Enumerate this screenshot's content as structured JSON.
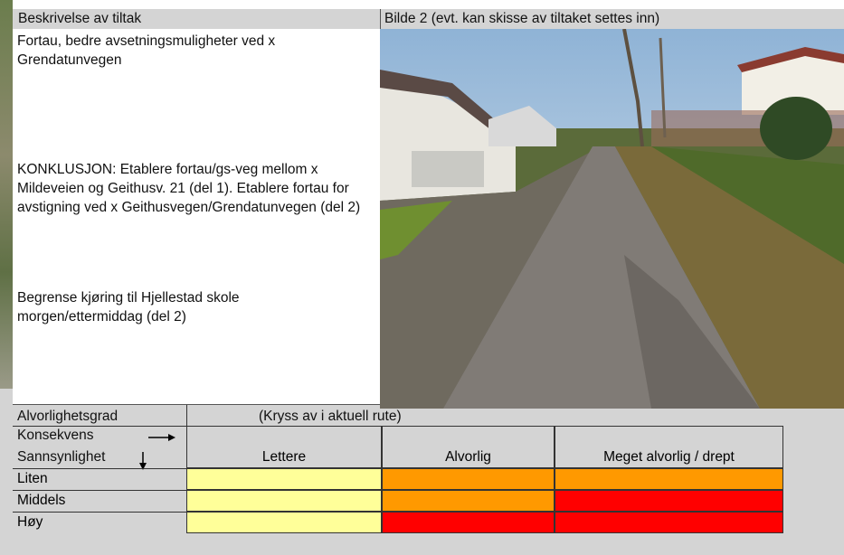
{
  "header": {
    "left": "Beskrivelse av tiltak",
    "right": "Bilde 2 (evt. kan skisse av tiltaket settes inn)"
  },
  "description": {
    "paragraphs": [
      "Fortau, bedre avsetningsmuligheter ved x Grendatunvegen",
      "KONKLUSJON:  Etablere fortau/gs-veg mellom x Mildeveien og Geithusv. 21 (del 1). Etablere fortau for avstigning ved x Geithusvegen/Grendatunvegen (del 2)",
      "Begrense kjøring til Hjellestad skole morgen/ettermiddag (del 2)"
    ]
  },
  "table": {
    "title": "Alvorlighetsgrad",
    "note": "(Kryss av i aktuell rute)",
    "row_axis": "Konsekvens",
    "col_axis": "Sannsynlighet",
    "columns": [
      "Lettere",
      "Alvorlig",
      "Meget alvorlig / drept"
    ],
    "rows": [
      {
        "label": "Liten",
        "colors": [
          "#ffff99",
          "#ff9900",
          "#ff9900"
        ]
      },
      {
        "label": "Middels",
        "colors": [
          "#ffff99",
          "#ff9900",
          "#ff0000"
        ]
      },
      {
        "label": "Høy",
        "colors": [
          "#ffff99",
          "#ff0000",
          "#ff0000"
        ]
      }
    ]
  }
}
